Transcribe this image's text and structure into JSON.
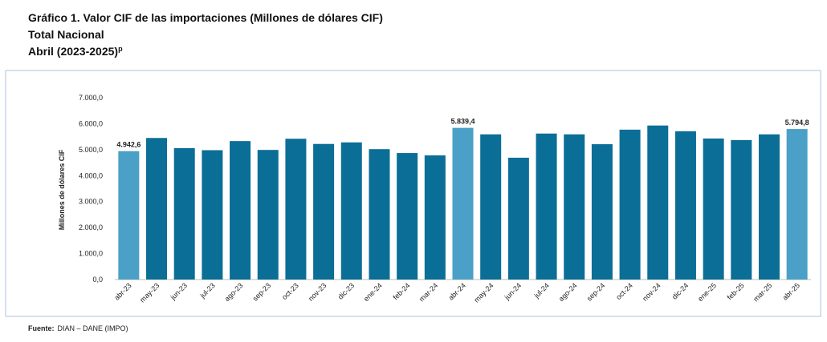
{
  "chart_data": {
    "type": "bar",
    "title": "Gráfico 1. Valor CIF de las importaciones (Millones de dólares CIF)",
    "subtitle": "Total Nacional",
    "period": "Abril (2023-2025)",
    "period_mark": "p",
    "ylabel": "Millones de dólares CIF",
    "source_label": "Fuente:",
    "source": "DIAN – DANE (IMPO)",
    "categories": [
      "abr-23",
      "may-23",
      "jun-23",
      "jul-23",
      "ago-23",
      "sep-23",
      "oct-23",
      "nov-23",
      "dic-23",
      "ene-24",
      "feb-24",
      "mar-24",
      "abr-24",
      "may-24",
      "jun-24",
      "jul-24",
      "ago-24",
      "sep-24",
      "oct-24",
      "nov-24",
      "dic-24",
      "ene-25",
      "feb-25",
      "mar-25",
      "abr-25"
    ],
    "values": [
      4942.6,
      5450,
      5060,
      4980,
      5330,
      4990,
      5420,
      5220,
      5280,
      5020,
      4870,
      4780,
      5839.4,
      5590,
      4690,
      5620,
      5590,
      5210,
      5770,
      5930,
      5710,
      5430,
      5370,
      5590,
      5794.8
    ],
    "value_labels": [
      "4.942,6",
      null,
      null,
      null,
      null,
      null,
      null,
      null,
      null,
      null,
      null,
      null,
      "5.839,4",
      null,
      null,
      null,
      null,
      null,
      null,
      null,
      null,
      null,
      null,
      null,
      "5.794,8"
    ],
    "colors": [
      "#4aa0c6",
      "#0b6e96",
      "#0b6e96",
      "#0b6e96",
      "#0b6e96",
      "#0b6e96",
      "#0b6e96",
      "#0b6e96",
      "#0b6e96",
      "#0b6e96",
      "#0b6e96",
      "#0b6e96",
      "#4aa0c6",
      "#0b6e96",
      "#0b6e96",
      "#0b6e96",
      "#0b6e96",
      "#0b6e96",
      "#0b6e96",
      "#0b6e96",
      "#0b6e96",
      "#0b6e96",
      "#0b6e96",
      "#0b6e96",
      "#4aa0c6"
    ],
    "ylim": [
      0,
      7000
    ],
    "yticks": [
      {
        "value": 0,
        "label": "0,0"
      },
      {
        "value": 1000,
        "label": "1.000,0"
      },
      {
        "value": 2000,
        "label": "2.000,0"
      },
      {
        "value": 3000,
        "label": "3.000,0"
      },
      {
        "value": 4000,
        "label": "4.000,0"
      },
      {
        "value": 5000,
        "label": "5.000,0"
      },
      {
        "value": 6000,
        "label": "6.000,0"
      },
      {
        "value": 7000,
        "label": "7.000,0"
      }
    ],
    "grid": false
  }
}
